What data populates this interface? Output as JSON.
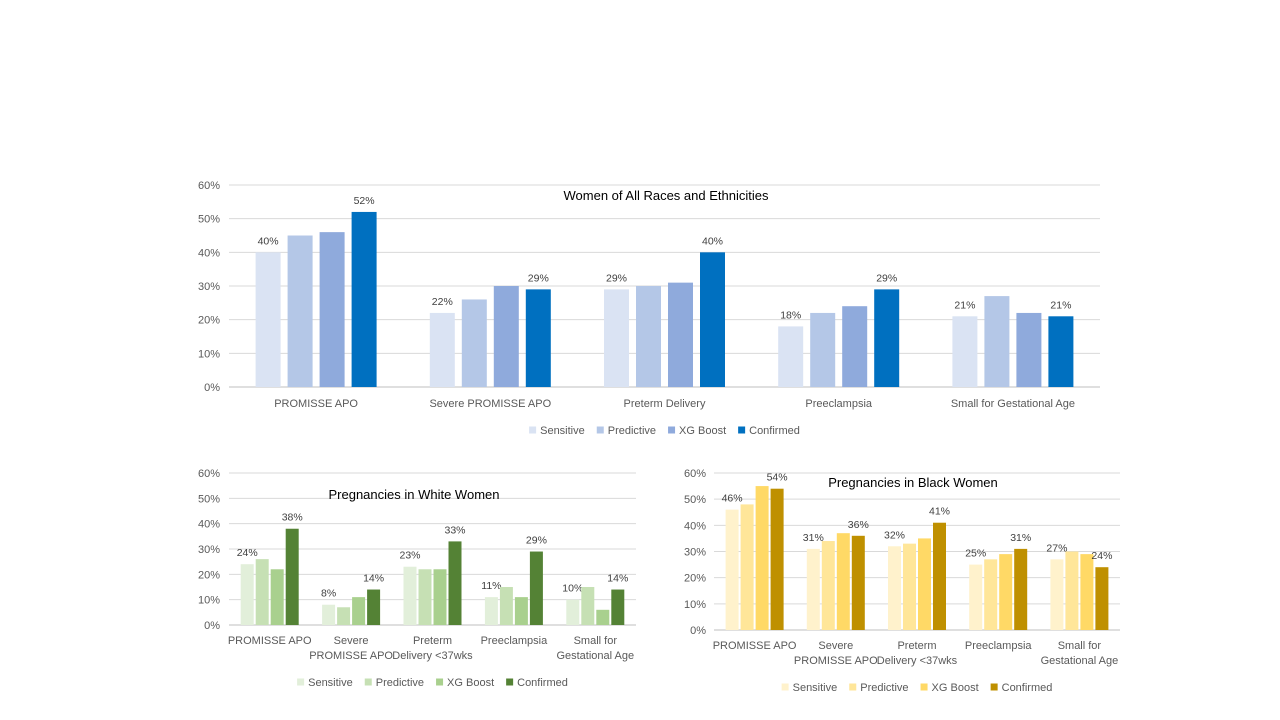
{
  "chart_data": [
    {
      "type": "bar",
      "title": "Women of All Races and Ethnicities",
      "categories": [
        "PROMISSE APO",
        "Severe PROMISSE APO",
        "Preterm Delivery",
        "Preeclampsia",
        "Small for Gestational Age"
      ],
      "series": [
        {
          "name": "Sensitive",
          "color": "#dae3f3",
          "values": [
            40,
            22,
            29,
            18,
            21
          ],
          "labels": [
            "40%",
            "22%",
            "29%",
            "18%",
            "21%"
          ]
        },
        {
          "name": "Predictive",
          "color": "#b4c7e7",
          "values": [
            45,
            26,
            30,
            22,
            27
          ],
          "labels": [
            "",
            "",
            "",
            "",
            ""
          ]
        },
        {
          "name": "XG Boost",
          "color": "#8faadc",
          "values": [
            46,
            30,
            31,
            24,
            22
          ],
          "labels": [
            "",
            "",
            "",
            "",
            ""
          ]
        },
        {
          "name": "Confirmed",
          "color": "#0070c0",
          "values": [
            52,
            29,
            40,
            29,
            21
          ],
          "labels": [
            "52%",
            "29%",
            "40%",
            "29%",
            "21%"
          ]
        }
      ],
      "ylim": [
        0,
        60
      ],
      "yticks": [
        "0%",
        "10%",
        "20%",
        "30%",
        "40%",
        "50%",
        "60%"
      ],
      "grid": true,
      "legend": "bottom"
    },
    {
      "type": "bar",
      "title": "Pregnancies in White Women",
      "categories": [
        "PROMISSE APO",
        "Severe\nPROMISSE APO",
        "Preterm\nDelivery <37wks",
        "Preeclampsia",
        "Small for\nGestational Age"
      ],
      "series": [
        {
          "name": "Sensitive",
          "color": "#e2efda",
          "values": [
            24,
            8,
            23,
            11,
            10
          ],
          "labels": [
            "24%",
            "8%",
            "23%",
            "11%",
            "10%"
          ]
        },
        {
          "name": "Predictive",
          "color": "#c6e0b4",
          "values": [
            26,
            7,
            22,
            15,
            15
          ],
          "labels": [
            "",
            "",
            "",
            "",
            ""
          ]
        },
        {
          "name": "XG Boost",
          "color": "#a9d08e",
          "values": [
            22,
            11,
            22,
            11,
            6
          ],
          "labels": [
            "",
            "",
            "",
            "",
            ""
          ]
        },
        {
          "name": "Confirmed",
          "color": "#548235",
          "values": [
            38,
            14,
            33,
            29,
            14
          ],
          "labels": [
            "38%",
            "14%",
            "33%",
            "29%",
            "14%"
          ]
        }
      ],
      "ylim": [
        0,
        60
      ],
      "yticks": [
        "0%",
        "10%",
        "20%",
        "30%",
        "40%",
        "50%",
        "60%"
      ],
      "grid": true,
      "legend": "bottom"
    },
    {
      "type": "bar",
      "title": "Pregnancies in Black Women",
      "categories": [
        "PROMISSE APO",
        "Severe\nPROMISSE APO",
        "Preterm\nDelivery <37wks",
        "Preeclampsia",
        "Small for\nGestational Age"
      ],
      "series": [
        {
          "name": "Sensitive",
          "color": "#fff2cc",
          "values": [
            46,
            31,
            32,
            25,
            27
          ],
          "labels": [
            "46%",
            "31%",
            "32%",
            "25%",
            "27%"
          ]
        },
        {
          "name": "Predictive",
          "color": "#ffe699",
          "values": [
            48,
            34,
            33,
            27,
            30
          ],
          "labels": [
            "",
            "",
            "",
            "",
            ""
          ]
        },
        {
          "name": "XG Boost",
          "color": "#ffd966",
          "values": [
            55,
            37,
            35,
            29,
            29
          ],
          "labels": [
            "",
            "",
            "",
            "",
            ""
          ]
        },
        {
          "name": "Confirmed",
          "color": "#bf9000",
          "values": [
            54,
            36,
            41,
            31,
            24
          ],
          "labels": [
            "54%",
            "36%",
            "41%",
            "31%",
            "24%"
          ]
        }
      ],
      "ylim": [
        0,
        60
      ],
      "yticks": [
        "0%",
        "10%",
        "20%",
        "30%",
        "40%",
        "50%",
        "60%"
      ],
      "grid": true,
      "legend": "bottom"
    }
  ]
}
